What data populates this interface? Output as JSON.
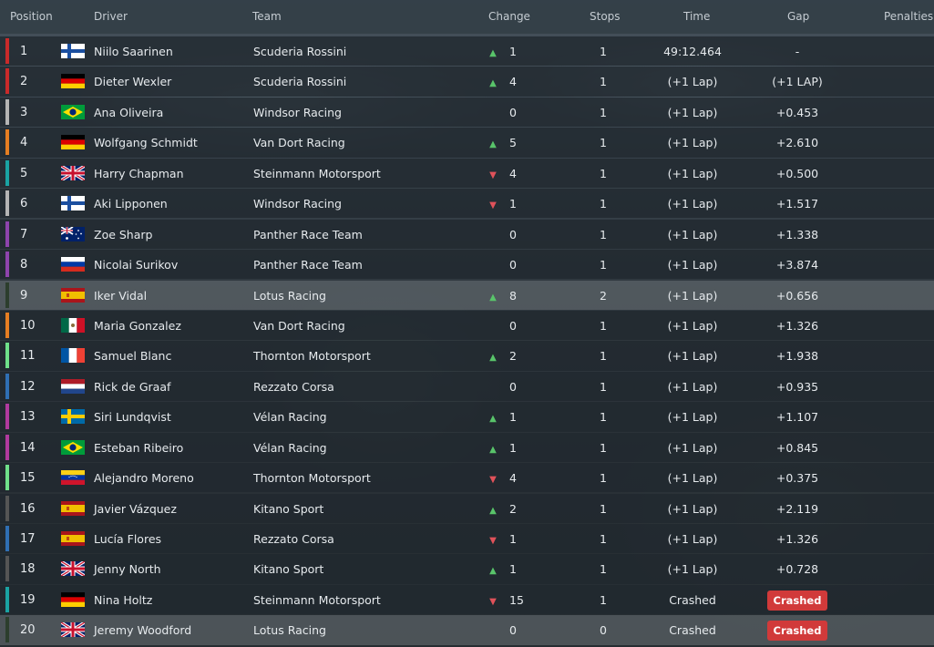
{
  "header": {
    "position": "Position",
    "driver": "Driver",
    "team": "Team",
    "change": "Change",
    "stops": "Stops",
    "time": "Time",
    "gap": "Gap",
    "penalties": "Penalties"
  },
  "team_colors": {
    "Scuderia Rossini": "#c92a2a",
    "Windsor Racing": "#b5b5b5",
    "Van Dort Racing": "#e67e22",
    "Steinmann Motorsport": "#1aa3a3",
    "Panther Race Team": "#8e44ad",
    "Lotus Racing": "#2c3e2d",
    "Thornton Motorsport": "#6fe08a",
    "Rezzato Corsa": "#2f6fb3",
    "Vélan Racing": "#b03a9e",
    "Kitano Sport": "#555555"
  },
  "rows": [
    {
      "pos": "1",
      "flag": "finland-flag",
      "driver": "Niilo Saarinen",
      "team": "Scuderia Rossini",
      "dir": "up",
      "change": "1",
      "stops": "1",
      "time": "49:12.464",
      "gap": "-",
      "badge": ""
    },
    {
      "pos": "2",
      "flag": "germany-flag",
      "driver": "Dieter Wexler",
      "team": "Scuderia Rossini",
      "dir": "up",
      "change": "4",
      "stops": "1",
      "time": "(+1 Lap)",
      "gap": "(+1 LAP)",
      "badge": ""
    },
    {
      "pos": "3",
      "flag": "brazil-flag",
      "driver": "Ana Oliveira",
      "team": "Windsor Racing",
      "dir": "none",
      "change": "0",
      "stops": "1",
      "time": "(+1 Lap)",
      "gap": "+0.453",
      "badge": ""
    },
    {
      "pos": "4",
      "flag": "germany-flag",
      "driver": "Wolfgang Schmidt",
      "team": "Van Dort Racing",
      "dir": "up",
      "change": "5",
      "stops": "1",
      "time": "(+1 Lap)",
      "gap": "+2.610",
      "badge": ""
    },
    {
      "pos": "5",
      "flag": "uk-flag",
      "driver": "Harry Chapman",
      "team": "Steinmann Motorsport",
      "dir": "down",
      "change": "4",
      "stops": "1",
      "time": "(+1 Lap)",
      "gap": "+0.500",
      "badge": ""
    },
    {
      "pos": "6",
      "flag": "finland-flag",
      "driver": "Aki Lipponen",
      "team": "Windsor Racing",
      "dir": "down",
      "change": "1",
      "stops": "1",
      "time": "(+1 Lap)",
      "gap": "+1.517",
      "badge": ""
    },
    {
      "pos": "7",
      "flag": "australia-flag",
      "driver": "Zoe Sharp",
      "team": "Panther Race Team",
      "dir": "none",
      "change": "0",
      "stops": "1",
      "time": "(+1 Lap)",
      "gap": "+1.338",
      "badge": ""
    },
    {
      "pos": "8",
      "flag": "russia-flag",
      "driver": "Nicolai Surikov",
      "team": "Panther Race Team",
      "dir": "none",
      "change": "0",
      "stops": "1",
      "time": "(+1 Lap)",
      "gap": "+3.874",
      "badge": ""
    },
    {
      "pos": "9",
      "flag": "spain-flag",
      "driver": "Iker Vidal",
      "team": "Lotus Racing",
      "dir": "up",
      "change": "8",
      "stops": "2",
      "time": "(+1 Lap)",
      "gap": "+0.656",
      "badge": "",
      "highlight": true
    },
    {
      "pos": "10",
      "flag": "mexico-flag",
      "driver": "Maria Gonzalez",
      "team": "Van Dort Racing",
      "dir": "none",
      "change": "0",
      "stops": "1",
      "time": "(+1 Lap)",
      "gap": "+1.326",
      "badge": ""
    },
    {
      "pos": "11",
      "flag": "france-flag",
      "driver": "Samuel Blanc",
      "team": "Thornton Motorsport",
      "dir": "up",
      "change": "2",
      "stops": "1",
      "time": "(+1 Lap)",
      "gap": "+1.938",
      "badge": ""
    },
    {
      "pos": "12",
      "flag": "netherlands-flag",
      "driver": "Rick de Graaf",
      "team": "Rezzato Corsa",
      "dir": "none",
      "change": "0",
      "stops": "1",
      "time": "(+1 Lap)",
      "gap": "+0.935",
      "badge": ""
    },
    {
      "pos": "13",
      "flag": "sweden-flag",
      "driver": "Siri Lundqvist",
      "team": "Vélan Racing",
      "dir": "up",
      "change": "1",
      "stops": "1",
      "time": "(+1 Lap)",
      "gap": "+1.107",
      "badge": ""
    },
    {
      "pos": "14",
      "flag": "brazil-flag",
      "driver": "Esteban Ribeiro",
      "team": "Vélan Racing",
      "dir": "up",
      "change": "1",
      "stops": "1",
      "time": "(+1 Lap)",
      "gap": "+0.845",
      "badge": ""
    },
    {
      "pos": "15",
      "flag": "venezuela-flag",
      "driver": "Alejandro Moreno",
      "team": "Thornton Motorsport",
      "dir": "down",
      "change": "4",
      "stops": "1",
      "time": "(+1 Lap)",
      "gap": "+0.375",
      "badge": ""
    },
    {
      "pos": "16",
      "flag": "spain-flag",
      "driver": "Javier Vázquez",
      "team": "Kitano Sport",
      "dir": "up",
      "change": "2",
      "stops": "1",
      "time": "(+1 Lap)",
      "gap": "+2.119",
      "badge": ""
    },
    {
      "pos": "17",
      "flag": "spain-flag",
      "driver": "Lucía Flores",
      "team": "Rezzato Corsa",
      "dir": "down",
      "change": "1",
      "stops": "1",
      "time": "(+1 Lap)",
      "gap": "+1.326",
      "badge": ""
    },
    {
      "pos": "18",
      "flag": "uk-flag",
      "driver": "Jenny North",
      "team": "Kitano Sport",
      "dir": "up",
      "change": "1",
      "stops": "1",
      "time": "(+1 Lap)",
      "gap": "+0.728",
      "badge": ""
    },
    {
      "pos": "19",
      "flag": "germany-flag",
      "driver": "Nina Holtz",
      "team": "Steinmann Motorsport",
      "dir": "down",
      "change": "15",
      "stops": "1",
      "time": "Crashed",
      "gap": "",
      "badge": "Crashed"
    },
    {
      "pos": "20",
      "flag": "uk-flag",
      "driver": "Jeremy Woodford",
      "team": "Lotus Racing",
      "dir": "none",
      "change": "0",
      "stops": "0",
      "time": "Crashed",
      "gap": "",
      "badge": "Crashed",
      "highlight": true
    }
  ]
}
